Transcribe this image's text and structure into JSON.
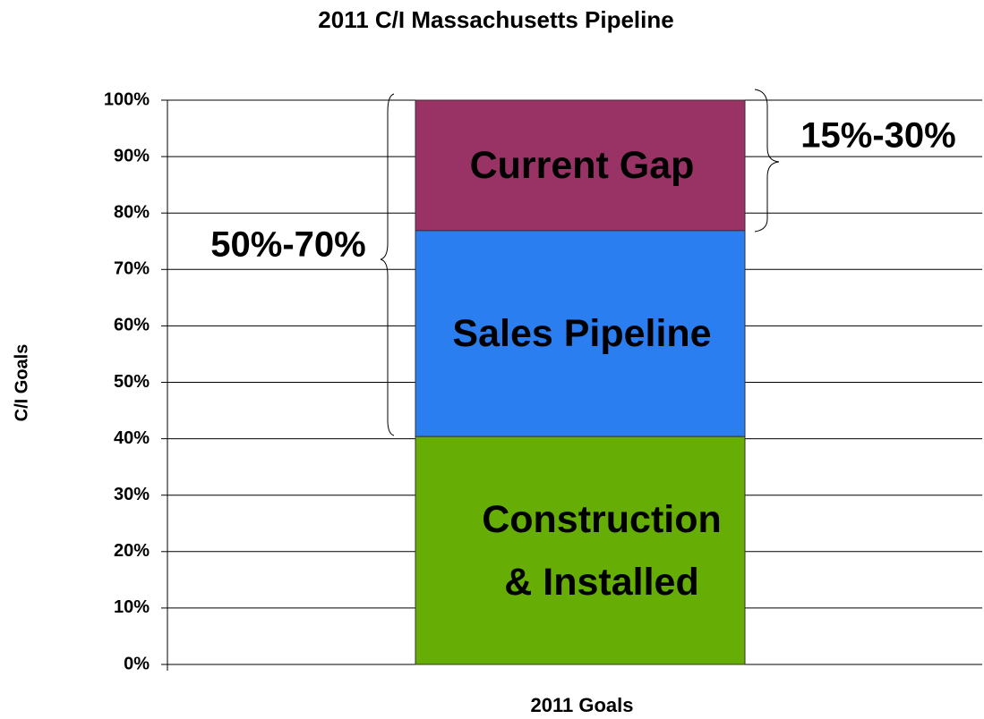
{
  "chart_data": {
    "type": "stacked_bar",
    "title": "2011 C/I Massachusetts Pipeline",
    "y_label": "C/I  Goals",
    "categories": [
      "2011 Goals"
    ],
    "series": [
      {
        "name": "Construction & Installed",
        "color": "#66ad06",
        "values": [
          40.4
        ]
      },
      {
        "name": "Sales Pipeline",
        "color": "#2b7ef0",
        "values": [
          36.5
        ]
      },
      {
        "name": "Current Gap",
        "color": "#993366",
        "values": [
          23.1
        ]
      }
    ],
    "ylim": [
      0,
      100
    ],
    "yticks": [
      {
        "value": 0,
        "label": "0%"
      },
      {
        "value": 10,
        "label": "10%"
      },
      {
        "value": 20,
        "label": "20%"
      },
      {
        "value": 30,
        "label": "30%"
      },
      {
        "value": 40,
        "label": "40%"
      },
      {
        "value": 50,
        "label": "50%"
      },
      {
        "value": 60,
        "label": "60%"
      },
      {
        "value": 70,
        "label": "70%"
      },
      {
        "value": 80,
        "label": "80%"
      },
      {
        "value": 90,
        "label": "90%"
      },
      {
        "value": 100,
        "label": "100%"
      }
    ],
    "grid": true,
    "annotations": [
      "50%-70%",
      "15%-30%"
    ]
  }
}
